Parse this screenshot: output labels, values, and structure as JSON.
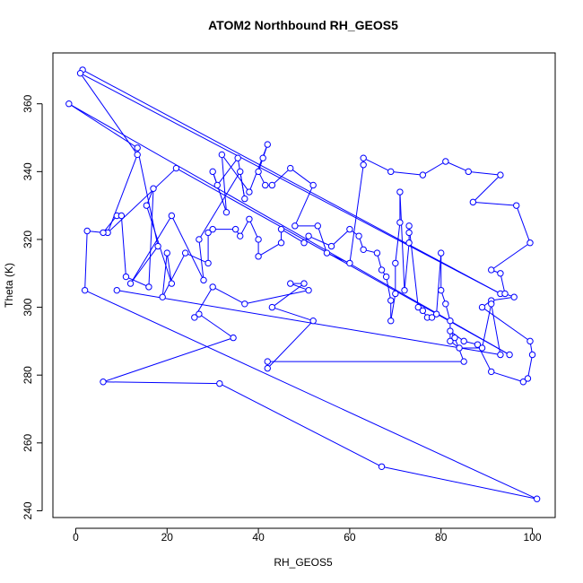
{
  "chart_data": {
    "type": "line",
    "title": "ATOM2 Northbound RH_GEOS5",
    "xlabel": "RH_GEOS5",
    "ylabel": "Theta (K)",
    "xlim": [
      -5,
      105
    ],
    "ylim": [
      238,
      375
    ],
    "xticks": [
      0,
      20,
      40,
      60,
      80,
      100
    ],
    "yticks": [
      240,
      260,
      280,
      300,
      320,
      340,
      360
    ],
    "grid": false,
    "legend": "none",
    "series_color": "#0000ff",
    "points": [
      [
        1.5,
        370
      ],
      [
        93,
        304
      ],
      [
        1,
        369
      ],
      [
        13.5,
        345
      ],
      [
        7,
        322
      ],
      [
        22,
        341
      ],
      [
        95,
        286
      ],
      [
        -1.5,
        360
      ],
      [
        13.5,
        347
      ],
      [
        18,
        318
      ],
      [
        12,
        307
      ],
      [
        21,
        327
      ],
      [
        28,
        308
      ],
      [
        27,
        320
      ],
      [
        36,
        340
      ],
      [
        37,
        332
      ],
      [
        35.5,
        344
      ],
      [
        31,
        336
      ],
      [
        30,
        340
      ],
      [
        33,
        328
      ],
      [
        32,
        345
      ],
      [
        38,
        334
      ],
      [
        42,
        348
      ],
      [
        41,
        344
      ],
      [
        40,
        340
      ],
      [
        41.5,
        336
      ],
      [
        43,
        336
      ],
      [
        47,
        341
      ],
      [
        52,
        336
      ],
      [
        48,
        324
      ],
      [
        53,
        324
      ],
      [
        55,
        316
      ],
      [
        60,
        313
      ],
      [
        63,
        342
      ],
      [
        63,
        344
      ],
      [
        69,
        340
      ],
      [
        76,
        339
      ],
      [
        81,
        343
      ],
      [
        86,
        340
      ],
      [
        93,
        339
      ],
      [
        87,
        331
      ],
      [
        96.5,
        330
      ],
      [
        99.5,
        319
      ],
      [
        91,
        311
      ],
      [
        93,
        310
      ],
      [
        94,
        304
      ],
      [
        96,
        303
      ],
      [
        91,
        302
      ],
      [
        89,
        300
      ],
      [
        99.5,
        290
      ],
      [
        100,
        286
      ],
      [
        99,
        279
      ],
      [
        98,
        278
      ],
      [
        91,
        281
      ],
      [
        88,
        289
      ],
      [
        85,
        290
      ],
      [
        82,
        293
      ],
      [
        83,
        291
      ],
      [
        85,
        284
      ],
      [
        42,
        284
      ],
      [
        42,
        282
      ],
      [
        52,
        296
      ],
      [
        43,
        300
      ],
      [
        50,
        307
      ],
      [
        47,
        307
      ],
      [
        51,
        305
      ],
      [
        37,
        301
      ],
      [
        30,
        306
      ],
      [
        26,
        297
      ],
      [
        27,
        298
      ],
      [
        34.5,
        291
      ],
      [
        6,
        278
      ],
      [
        31.5,
        277.5
      ],
      [
        67,
        253
      ],
      [
        101,
        243.5
      ],
      [
        2,
        305
      ],
      [
        2.5,
        322.5
      ],
      [
        6,
        322
      ],
      [
        9,
        327
      ],
      [
        10,
        327
      ],
      [
        11,
        309
      ],
      [
        16,
        306
      ],
      [
        17,
        335
      ],
      [
        15.5,
        330
      ],
      [
        21,
        307
      ],
      [
        20,
        316
      ],
      [
        19,
        303
      ],
      [
        24,
        316
      ],
      [
        29,
        313
      ],
      [
        29,
        322
      ],
      [
        30,
        323
      ],
      [
        35,
        323
      ],
      [
        36,
        321
      ],
      [
        38,
        326
      ],
      [
        40,
        320
      ],
      [
        40,
        315
      ],
      [
        45,
        319
      ],
      [
        45,
        323
      ],
      [
        50,
        319
      ],
      [
        51,
        321
      ],
      [
        56,
        318
      ],
      [
        60,
        323
      ],
      [
        62,
        321
      ],
      [
        63,
        317
      ],
      [
        66,
        316
      ],
      [
        67,
        311
      ],
      [
        68,
        309
      ],
      [
        69,
        302
      ],
      [
        69,
        296
      ],
      [
        70,
        304
      ],
      [
        70,
        313
      ],
      [
        71,
        325
      ],
      [
        71,
        334
      ],
      [
        72,
        305
      ],
      [
        73,
        319
      ],
      [
        73,
        322
      ],
      [
        73,
        324
      ],
      [
        75,
        300
      ],
      [
        76,
        299
      ],
      [
        77,
        297
      ],
      [
        78,
        297
      ],
      [
        79,
        298
      ],
      [
        80,
        316
      ],
      [
        80,
        305
      ],
      [
        81,
        301
      ],
      [
        82,
        296
      ],
      [
        82,
        290
      ],
      [
        84,
        288
      ],
      [
        89,
        288
      ],
      [
        91,
        301
      ],
      [
        93,
        286
      ],
      [
        9,
        305
      ]
    ]
  }
}
